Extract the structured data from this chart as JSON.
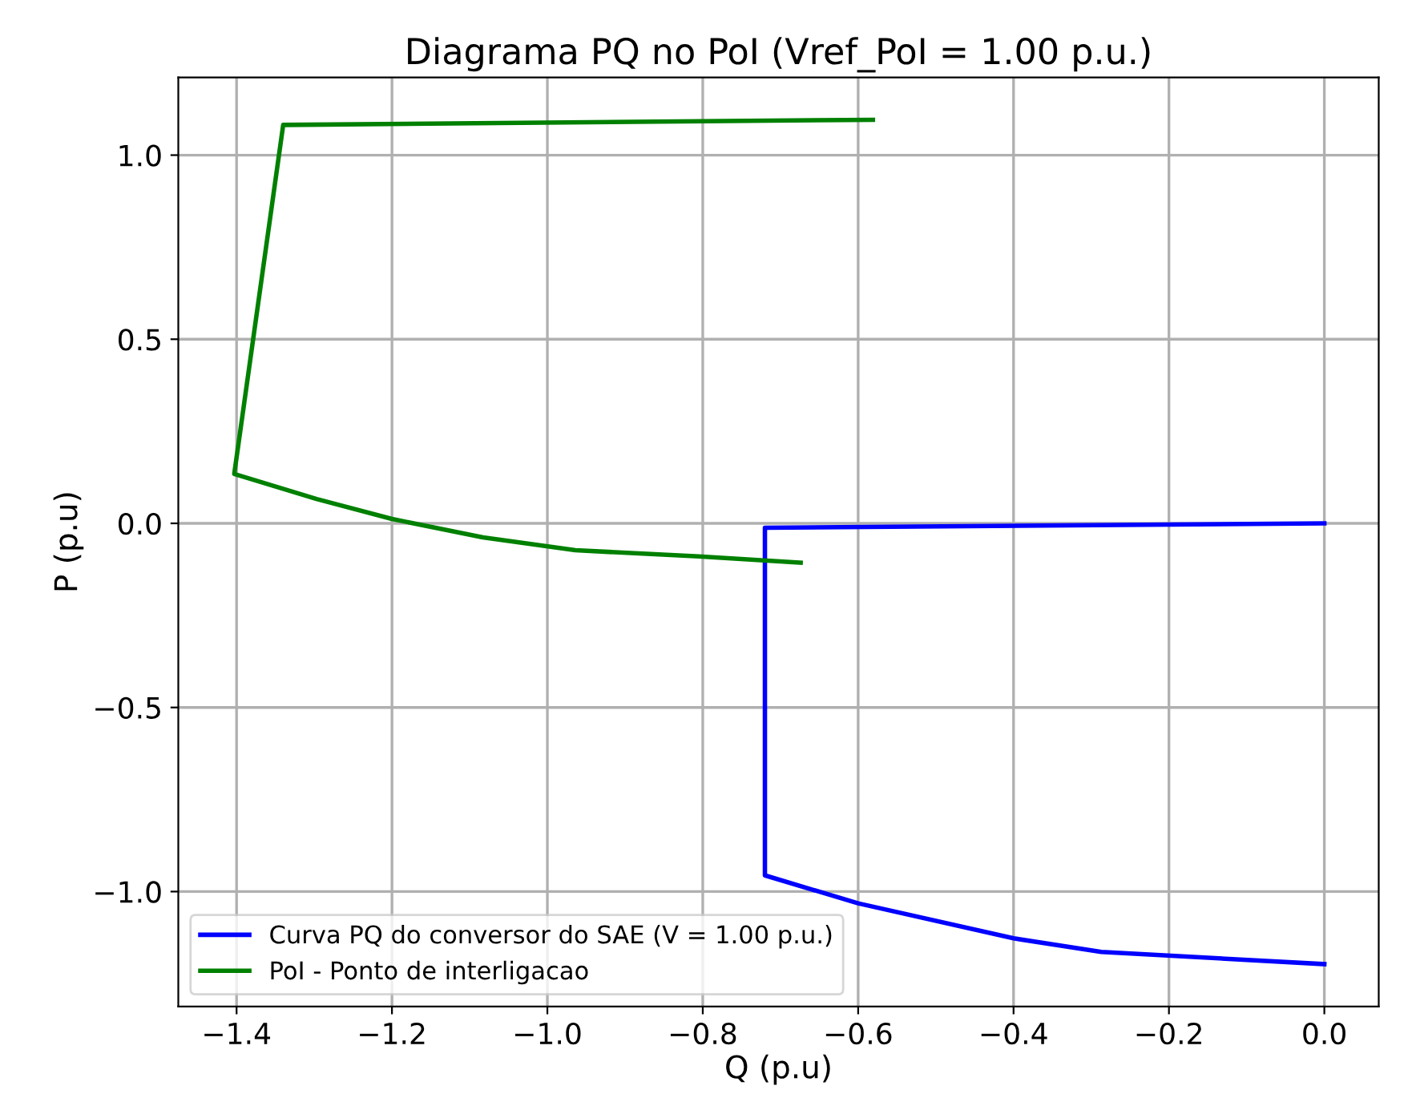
{
  "chart_data": {
    "type": "line",
    "title": "Diagrama PQ no PoI (Vref_PoI = 1.00 p.u.)",
    "xlabel": "Q (p.u)",
    "ylabel": "P (p.u)",
    "series": [
      {
        "name": "Curva PQ do conversor do SAE (V = 1.00 p.u.)",
        "color": "#0000ff",
        "x": [
          0.0,
          -0.72,
          -0.72,
          -0.6,
          -0.4,
          -0.287,
          0.0
        ],
        "values": [
          0.0,
          -0.012,
          -0.956,
          -1.032,
          -1.127,
          -1.164,
          -1.197
        ]
      },
      {
        "name": "PoI - Ponto de interligacao",
        "color": "#008000",
        "x": [
          -0.581,
          -1.34,
          -1.403,
          -1.297,
          -1.2,
          -1.083,
          -0.964,
          -0.805,
          -0.674
        ],
        "values": [
          1.096,
          1.082,
          0.134,
          0.066,
          0.012,
          -0.038,
          -0.073,
          -0.09,
          -0.107
        ]
      }
    ],
    "xlim": [
      -1.475,
      0.07
    ],
    "ylim": [
      -1.312,
      1.211
    ],
    "xticks": [
      {
        "value": -1.4,
        "label": "−1.4"
      },
      {
        "value": -1.2,
        "label": "−1.2"
      },
      {
        "value": -1.0,
        "label": "−1.0"
      },
      {
        "value": -0.8,
        "label": "−0.8"
      },
      {
        "value": -0.6,
        "label": "−0.6"
      },
      {
        "value": -0.4,
        "label": "−0.4"
      },
      {
        "value": -0.2,
        "label": "−0.2"
      },
      {
        "value": 0.0,
        "label": "0.0"
      }
    ],
    "yticks": [
      {
        "value": -1.0,
        "label": "−1.0"
      },
      {
        "value": -0.5,
        "label": "−0.5"
      },
      {
        "value": 0.0,
        "label": "0.0"
      },
      {
        "value": 0.5,
        "label": "0.5"
      },
      {
        "value": 1.0,
        "label": "1.0"
      }
    ],
    "grid": true,
    "legend": "bottom left",
    "marker": "none",
    "line_style": "solid"
  }
}
